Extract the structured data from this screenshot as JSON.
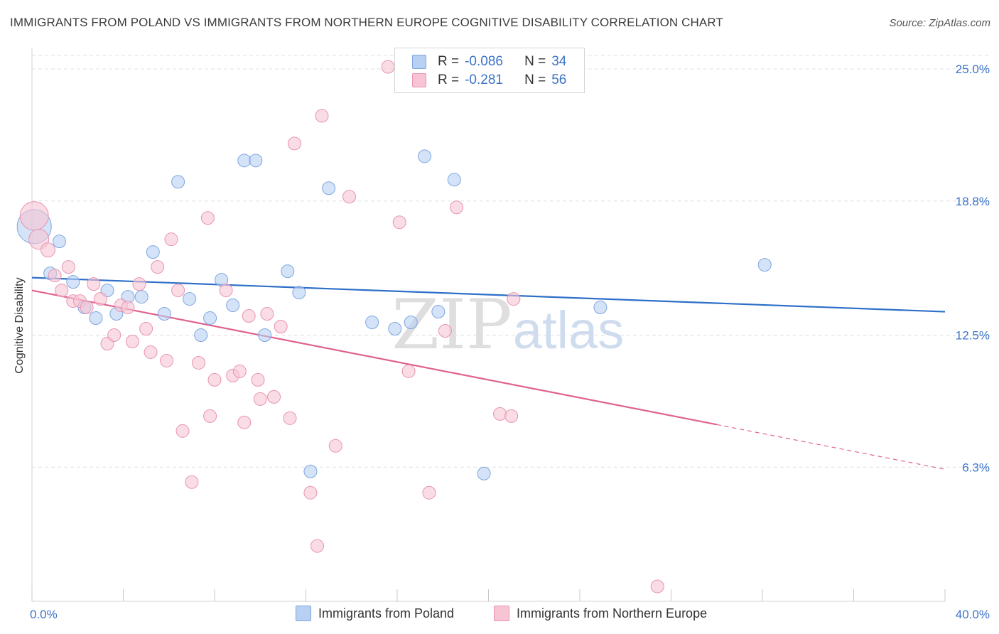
{
  "title": "IMMIGRANTS FROM POLAND VS IMMIGRANTS FROM NORTHERN EUROPE COGNITIVE DISABILITY CORRELATION CHART",
  "source": "Source: ZipAtlas.com",
  "watermark": {
    "left": "ZIP",
    "right": "atlas"
  },
  "colors": {
    "poland_fill": "#b8d0f2",
    "poland_stroke": "#7ea6df",
    "poland_line": "#2e6fc8",
    "northern_fill": "#f7c4d4",
    "northern_stroke": "#e894b2",
    "northern_line": "#e0628f",
    "tick_label": "#3b73c9",
    "grid": "#e0e0e0"
  },
  "legend": {
    "rows": [
      {
        "r_label": "R =",
        "r_value": "-0.086",
        "n_label": "N =",
        "n_value": "34"
      },
      {
        "r_label": "R =",
        "r_value": "-0.281",
        "n_label": "N =",
        "n_value": "56"
      }
    ]
  },
  "bottom_legend": {
    "poland": "Immigrants from Poland",
    "northern": "Immigrants from Northern Europe"
  },
  "chart_data": {
    "type": "scatter",
    "title": "IMMIGRANTS FROM POLAND VS IMMIGRANTS FROM NORTHERN EUROPE COGNITIVE DISABILITY CORRELATION CHART",
    "xlabel": "",
    "ylabel": "Cognitive Disability",
    "xlim": [
      0,
      40
    ],
    "ylim": [
      0,
      25.5
    ],
    "x_tick_labels": [
      "0.0%",
      "40.0%"
    ],
    "y_ticks": [
      6.3,
      12.5,
      18.8,
      25.0
    ],
    "y_tick_labels": [
      "6.3%",
      "12.5%",
      "18.8%",
      "25.0%"
    ],
    "grid": "horizontal dashed",
    "legend_placement": "top-center",
    "series": [
      {
        "name": "Immigrants from Poland",
        "trend": [
          [
            0,
            15.2
          ],
          [
            40,
            13.6
          ]
        ],
        "points": [
          [
            0.1,
            17.6,
            24
          ],
          [
            1.2,
            16.9,
            9
          ],
          [
            0.8,
            15.4,
            9
          ],
          [
            1.8,
            15.0,
            9
          ],
          [
            2.3,
            13.8,
            9
          ],
          [
            2.8,
            13.3,
            9
          ],
          [
            3.3,
            14.6,
            9
          ],
          [
            3.7,
            13.5,
            9
          ],
          [
            4.2,
            14.3,
            9
          ],
          [
            4.8,
            14.3,
            9
          ],
          [
            5.3,
            16.4,
            9
          ],
          [
            5.8,
            13.5,
            9
          ],
          [
            6.4,
            19.7,
            9
          ],
          [
            6.9,
            14.2,
            9
          ],
          [
            7.4,
            12.5,
            9
          ],
          [
            7.8,
            13.3,
            9
          ],
          [
            8.3,
            15.1,
            9
          ],
          [
            8.8,
            13.9,
            9
          ],
          [
            9.3,
            20.7,
            9
          ],
          [
            9.8,
            20.7,
            9
          ],
          [
            10.2,
            12.5,
            9
          ],
          [
            11.2,
            15.5,
            9
          ],
          [
            11.7,
            14.5,
            9
          ],
          [
            12.2,
            6.1,
            9
          ],
          [
            13.0,
            19.4,
            9
          ],
          [
            14.9,
            13.1,
            9
          ],
          [
            15.9,
            12.8,
            9
          ],
          [
            16.6,
            13.1,
            9
          ],
          [
            17.2,
            20.9,
            9
          ],
          [
            17.8,
            13.6,
            9
          ],
          [
            18.5,
            19.8,
            9
          ],
          [
            19.8,
            6.0,
            9
          ],
          [
            24.9,
            13.8,
            9
          ],
          [
            32.1,
            15.8,
            9
          ]
        ]
      },
      {
        "name": "Immigrants from Northern Europe",
        "trend": [
          [
            0,
            14.6
          ],
          [
            30,
            8.3
          ]
        ],
        "trend_dashed": [
          [
            30,
            8.3
          ],
          [
            40,
            6.2
          ]
        ],
        "points": [
          [
            0.1,
            18.1,
            20
          ],
          [
            0.3,
            17.0,
            14
          ],
          [
            0.7,
            16.5,
            10
          ],
          [
            1.0,
            15.3,
            9
          ],
          [
            1.3,
            14.6,
            9
          ],
          [
            1.6,
            15.7,
            9
          ],
          [
            1.8,
            14.1,
            9
          ],
          [
            2.1,
            14.1,
            9
          ],
          [
            2.4,
            13.8,
            9
          ],
          [
            2.7,
            14.9,
            9
          ],
          [
            3.0,
            14.2,
            9
          ],
          [
            3.3,
            12.1,
            9
          ],
          [
            3.6,
            12.5,
            9
          ],
          [
            3.9,
            13.9,
            9
          ],
          [
            4.2,
            13.8,
            9
          ],
          [
            4.4,
            12.2,
            9
          ],
          [
            4.7,
            14.9,
            9
          ],
          [
            5.0,
            12.8,
            9
          ],
          [
            5.2,
            11.7,
            9
          ],
          [
            5.5,
            15.7,
            9
          ],
          [
            5.9,
            11.3,
            9
          ],
          [
            6.1,
            17.0,
            9
          ],
          [
            6.4,
            14.6,
            9
          ],
          [
            6.6,
            8.0,
            9
          ],
          [
            7.0,
            5.6,
            9
          ],
          [
            7.3,
            11.2,
            9
          ],
          [
            7.7,
            18.0,
            9
          ],
          [
            7.8,
            8.7,
            9
          ],
          [
            8.0,
            10.4,
            9
          ],
          [
            8.5,
            14.6,
            9
          ],
          [
            8.8,
            10.6,
            9
          ],
          [
            9.1,
            10.8,
            9
          ],
          [
            9.3,
            8.4,
            9
          ],
          [
            9.5,
            13.4,
            9
          ],
          [
            9.9,
            10.4,
            9
          ],
          [
            10.0,
            9.5,
            9
          ],
          [
            10.3,
            13.5,
            9
          ],
          [
            10.6,
            9.6,
            9
          ],
          [
            10.9,
            12.9,
            9
          ],
          [
            11.3,
            8.6,
            9
          ],
          [
            11.5,
            21.5,
            9
          ],
          [
            12.2,
            5.1,
            9
          ],
          [
            12.5,
            2.6,
            9
          ],
          [
            12.7,
            22.8,
            9
          ],
          [
            13.3,
            7.3,
            9
          ],
          [
            13.9,
            19.0,
            9
          ],
          [
            15.6,
            25.1,
            9
          ],
          [
            16.1,
            17.8,
            9
          ],
          [
            16.5,
            10.8,
            9
          ],
          [
            17.4,
            5.1,
            9
          ],
          [
            18.1,
            12.7,
            9
          ],
          [
            18.6,
            18.5,
            9
          ],
          [
            20.5,
            8.8,
            9
          ],
          [
            21.0,
            8.7,
            9
          ],
          [
            21.1,
            14.2,
            9
          ],
          [
            27.4,
            0.7,
            9
          ]
        ]
      }
    ]
  }
}
